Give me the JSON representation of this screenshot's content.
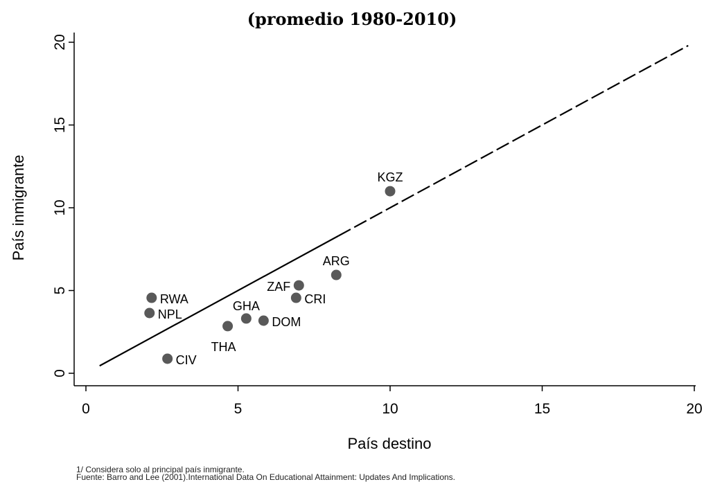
{
  "chart_data": {
    "type": "scatter",
    "title": "(promedio 1980-2010)",
    "x_label": "País destino",
    "y_label": "País inmigrante",
    "xlim": [
      0,
      20
    ],
    "ylim": [
      0,
      20
    ],
    "xticks": [
      0,
      5,
      10,
      15,
      20
    ],
    "yticks": [
      0,
      5,
      10,
      15,
      20
    ],
    "color": "#595959",
    "points": {
      "labels": [
        "KGZ",
        "ARG",
        "ZAF",
        "CRI",
        "DOM",
        "GHA",
        "THA",
        "RWA",
        "NPL",
        "CIV"
      ],
      "x": [
        10.0,
        8.23,
        7.0,
        6.91,
        5.84,
        5.27,
        4.66,
        2.16,
        2.09,
        2.68
      ],
      "y": [
        11.0,
        5.94,
        5.31,
        4.56,
        3.18,
        3.31,
        2.85,
        4.56,
        3.64,
        0.88
      ]
    },
    "lines": [
      {
        "style": "solid",
        "x": [
          0.45,
          8.3
        ],
        "y": [
          0.45,
          8.3
        ]
      },
      {
        "style": "dashed",
        "x": [
          8.3,
          19.8
        ],
        "y": [
          8.3,
          19.8
        ]
      }
    ],
    "notes": [
      "1/ Considera solo al principal país inmigrante.",
      "Fuente: Barro and Lee (2001).International Data On Educational Attainment: Updates And Implications."
    ]
  }
}
